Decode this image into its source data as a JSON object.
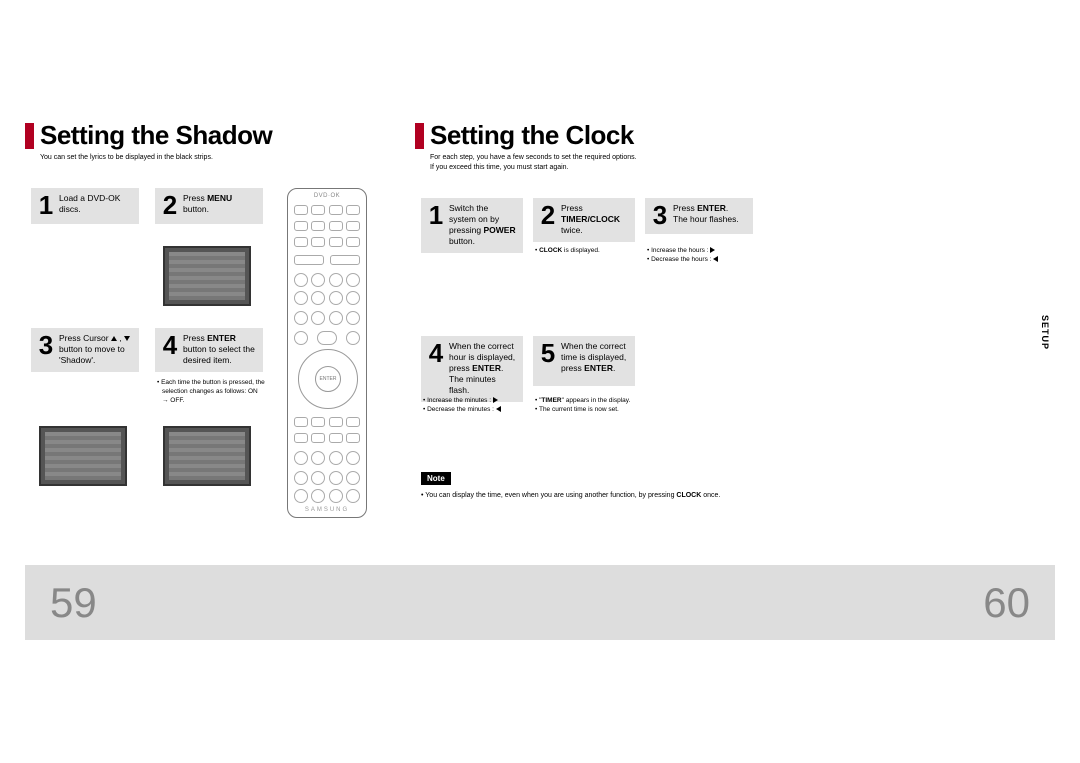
{
  "left": {
    "heading": "Setting the Shadow",
    "subtext": "You can set the lyrics to be displayed in the black strips.",
    "steps": [
      {
        "num": "1",
        "html": "Load a DVD-OK discs."
      },
      {
        "num": "2",
        "html": "Press <b>MENU</b> button."
      },
      {
        "num": "3",
        "html": "Press Cursor <span class='tri-up'></span> , <span class='tri-down'></span> button to move to 'Shadow'."
      },
      {
        "num": "4",
        "html": "Press <b>ENTER</b> button to select the desired item."
      }
    ],
    "step4_notes": [
      "Each time the button is pressed, the selection changes as follows: ON → OFF."
    ]
  },
  "right": {
    "heading": "Setting the Clock",
    "subtext_lines": [
      "For each step, you have a few seconds to set the required options.",
      "If you exceed this time, you must start again."
    ],
    "steps": [
      {
        "num": "1",
        "html": "Switch the system on by pressing <b>POWER</b> button."
      },
      {
        "num": "2",
        "html": "Press <b>TIMER/CLOCK</b> twice."
      },
      {
        "num": "3",
        "html": "Press <b>ENTER</b>.<br>The hour flashes."
      },
      {
        "num": "4",
        "html": "When the correct hour is displayed, press <b>ENTER</b>.<br>The minutes flash."
      },
      {
        "num": "5",
        "html": "When the correct time is displayed, press <b>ENTER</b>."
      }
    ],
    "step2_notes": [
      "<b>CLOCK</b> is displayed."
    ],
    "step3_notes": [
      "Increase the hours : <span class='tri-right'></span>",
      "Decrease the hours : <span class='tri-left'></span>"
    ],
    "step4_notes": [
      "Increase the minutes : <span class='tri-right'></span>",
      "Decrease the minutes : <span class='tri-left'></span>"
    ],
    "step5_notes": [
      "\"<b>TIMER</b>\" appears in the display.",
      "The current time is now set."
    ],
    "note_label": "Note",
    "final_note": "You can display the time, even when you are using another function, by pressing <b>CLOCK</b> once.",
    "setup_tab": "SETUP"
  },
  "remote_brand": "SAMSUNG",
  "page_left": "59",
  "page_right": "60",
  "colors": {
    "accent": "#b10021",
    "step_bg": "#e2e2e2",
    "footer_bg": "#dddddd",
    "page_num": "#888888"
  }
}
